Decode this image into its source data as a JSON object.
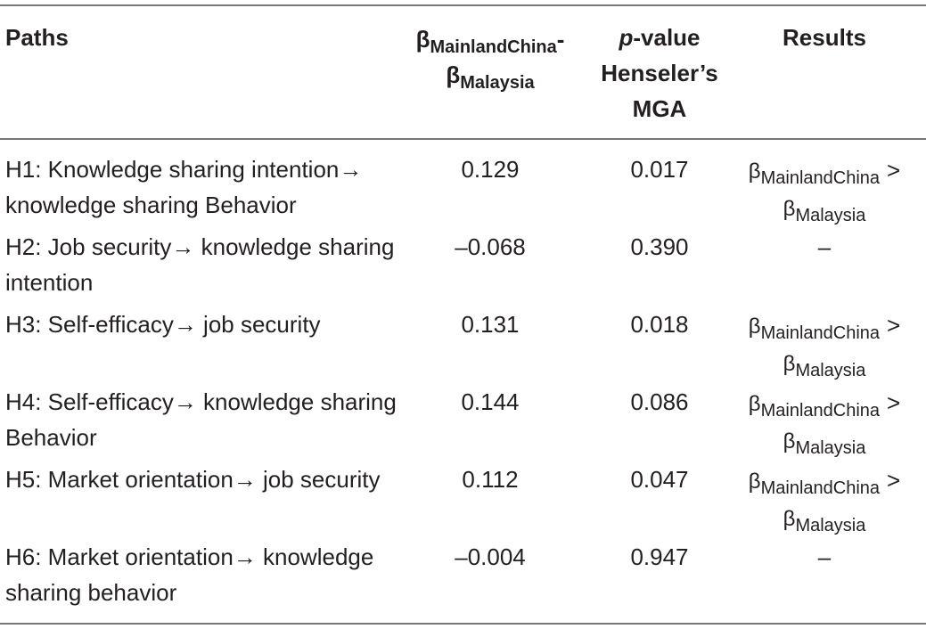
{
  "table": {
    "header": [
      "Paths",
      {
        "parts": [
          "β",
          "MainlandChina",
          "-",
          "β",
          "Malaysia"
        ]
      },
      {
        "parts": [
          "p",
          "-value",
          "Henseler’s",
          "MGA"
        ]
      },
      "Results"
    ],
    "rows": [
      [
        "H1: Knowledge sharing intention→ knowledge sharing Behavior",
        "0.129",
        "0.017",
        {
          "parts": [
            "β",
            "MainlandChina",
            ">",
            "β",
            "Malaysia"
          ]
        }
      ],
      [
        "H2: Job security→ knowledge sharing intention",
        "–0.068",
        "0.390",
        "–"
      ],
      [
        "H3: Self-efficacy→ job security",
        "0.131",
        "0.018",
        {
          "parts": [
            "β",
            "MainlandChina",
            ">",
            "β",
            "Malaysia"
          ]
        }
      ],
      [
        "H4: Self-efficacy→ knowledge sharing Behavior",
        "0.144",
        "0.086",
        {
          "parts": [
            "β",
            "MainlandChina",
            ">",
            "β",
            "Malaysia"
          ]
        }
      ],
      [
        "H5: Market orientation→ job security",
        "0.112",
        "0.047",
        {
          "parts": [
            "β",
            "MainlandChina",
            ">",
            "β",
            "Malaysia"
          ]
        }
      ],
      [
        "H6: Market orientation→ knowledge sharing behavior",
        "–0.004",
        "0.947",
        "–"
      ]
    ]
  }
}
